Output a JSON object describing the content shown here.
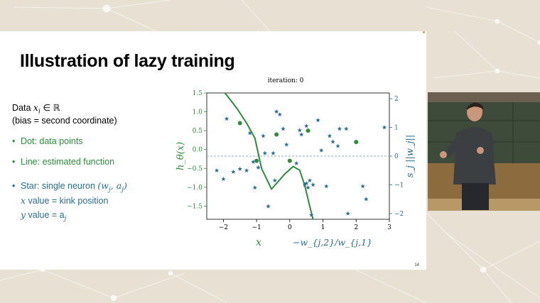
{
  "slide": {
    "title": "Illustration of lazy training",
    "data_line1_prefix": "Data ",
    "data_line1_math": "x",
    "data_line1_sub": "i",
    "data_line1_suffix": " ∈ ℝ",
    "data_line2": "(bias = second coordinate)",
    "bullet_dot": "Dot: data points",
    "bullet_line": "Line: estimated function",
    "bullet_star_prefix": "Star: single neuron ",
    "bullet_star_math": "(w",
    "bullet_star_math_sub1": "j",
    "bullet_star_math_mid": ", a",
    "bullet_star_math_sub2": "j",
    "bullet_star_math_end": ")",
    "x_value_math": "x",
    "x_value_text": " value =  kink position",
    "y_value_math": "y",
    "y_value_text": " value  = a",
    "y_value_sub": "j",
    "page_number": "14"
  },
  "chart_data": {
    "type": "scatter",
    "title": "iteration: 0",
    "xlabel_left": "x",
    "xlabel_right": "−w_{j,2}/w_{j,1}",
    "ylabel_left": "h_θ(x)",
    "ylabel_right": "s_j ||w_j||",
    "xlim": [
      -2.5,
      3
    ],
    "ylim_left": [
      -1.85,
      1.5
    ],
    "ylim_right": [
      -2.2,
      2.2
    ],
    "x_ticks": [
      -2,
      -1,
      0,
      1,
      2,
      3
    ],
    "y_ticks_left": [
      -1.5,
      -1.0,
      -0.5,
      0.0,
      0.5,
      1.0,
      1.5
    ],
    "y_ticks_right": [
      -2,
      -1,
      0,
      1,
      2
    ],
    "y_tick_labels_left": [
      "−1.5",
      "−1.0",
      "−0.5",
      "0.0",
      "0.5",
      "1.0",
      "1.5"
    ],
    "x_tick_labels": [
      "−2",
      "−1",
      "0",
      "1",
      "2",
      "3"
    ],
    "y_tick_labels_right": [
      "−2",
      "−1",
      "0",
      "1",
      "2"
    ],
    "reference_line_right_y": 0,
    "colors": {
      "green": "#2e8b3c",
      "blue": "#2a6d8f",
      "dashed": "#8fb1c7"
    },
    "data_points": [
      {
        "x": -1.5,
        "y": 0.7
      },
      {
        "x": -1.0,
        "y": -0.3
      },
      {
        "x": -0.4,
        "y": 0.4
      },
      {
        "x": 0.0,
        "y": -0.3
      },
      {
        "x": 0.55,
        "y": 0.5
      },
      {
        "x": 2.0,
        "y": 0.2
      }
    ],
    "estimated_function": [
      {
        "x": -1.95,
        "y": 1.5
      },
      {
        "x": -1.6,
        "y": 1.1
      },
      {
        "x": -1.3,
        "y": 0.7
      },
      {
        "x": -1.05,
        "y": 0.3
      },
      {
        "x": -0.85,
        "y": -0.5
      },
      {
        "x": -0.55,
        "y": -1.05
      },
      {
        "x": -0.35,
        "y": -0.85
      },
      {
        "x": -0.15,
        "y": -0.65
      },
      {
        "x": 0.1,
        "y": -0.45
      },
      {
        "x": 0.3,
        "y": -0.55
      },
      {
        "x": 0.45,
        "y": -0.95
      },
      {
        "x": 0.6,
        "y": -1.5
      },
      {
        "x": 0.7,
        "y": -1.85
      }
    ],
    "neurons": [
      {
        "x": -2.2,
        "y": -0.5
      },
      {
        "x": -2.0,
        "y": -0.8
      },
      {
        "x": -1.9,
        "y": 1.3
      },
      {
        "x": -1.7,
        "y": -0.55
      },
      {
        "x": -1.5,
        "y": -0.45
      },
      {
        "x": -1.3,
        "y": -0.5
      },
      {
        "x": -1.2,
        "y": 0.8
      },
      {
        "x": -1.1,
        "y": -0.2
      },
      {
        "x": -1.05,
        "y": -1.1
      },
      {
        "x": -0.95,
        "y": -0.4
      },
      {
        "x": -0.8,
        "y": 0.7
      },
      {
        "x": -0.75,
        "y": 0.1
      },
      {
        "x": -0.65,
        "y": -1.75
      },
      {
        "x": -0.5,
        "y": 0.1
      },
      {
        "x": -0.45,
        "y": -0.85
      },
      {
        "x": -0.4,
        "y": 1.55
      },
      {
        "x": -0.3,
        "y": 1.45
      },
      {
        "x": -0.2,
        "y": 0.95
      },
      {
        "x": -0.1,
        "y": 0.4
      },
      {
        "x": 0.2,
        "y": -0.25
      },
      {
        "x": 0.3,
        "y": 0.9
      },
      {
        "x": 0.35,
        "y": 0.75
      },
      {
        "x": 0.45,
        "y": -1.0
      },
      {
        "x": 0.5,
        "y": 1.05
      },
      {
        "x": 0.5,
        "y": -0.95
      },
      {
        "x": 0.55,
        "y": -1.1
      },
      {
        "x": 0.6,
        "y": -0.85
      },
      {
        "x": 0.65,
        "y": -2.05
      },
      {
        "x": 0.7,
        "y": -1.0
      },
      {
        "x": 0.85,
        "y": 1.25
      },
      {
        "x": 0.95,
        "y": 0.2
      },
      {
        "x": 1.1,
        "y": -1.05
      },
      {
        "x": 1.2,
        "y": 0.7
      },
      {
        "x": 1.3,
        "y": 0.5
      },
      {
        "x": 1.45,
        "y": 0.35
      },
      {
        "x": 1.5,
        "y": 0.95
      },
      {
        "x": 1.7,
        "y": 0.95
      },
      {
        "x": 1.75,
        "y": -2.0
      },
      {
        "x": 2.2,
        "y": -1.05
      },
      {
        "x": 2.3,
        "y": -1.5
      },
      {
        "x": 2.85,
        "y": 1.0
      }
    ]
  },
  "video": {
    "description_colors": {
      "board": "#5b4d3a",
      "shirt": "#3b3f42"
    }
  }
}
